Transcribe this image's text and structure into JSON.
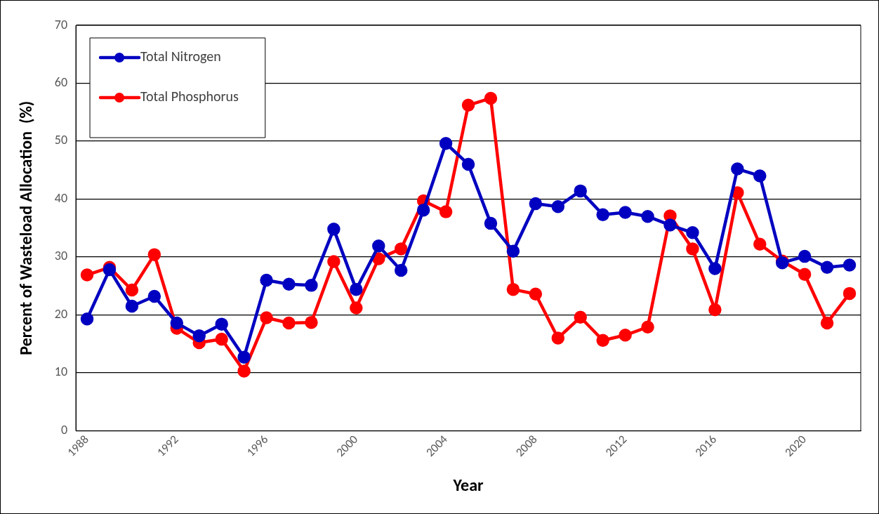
{
  "chart_data": {
    "type": "line",
    "xlabel": "Year",
    "ylabel": "Percent of Wasteload Allocation  (%)",
    "x": [
      1988,
      1989,
      1990,
      1991,
      1992,
      1993,
      1994,
      1995,
      1996,
      1997,
      1998,
      1999,
      2000,
      2001,
      2002,
      2003,
      2004,
      2005,
      2006,
      2007,
      2008,
      2009,
      2010,
      2011,
      2012,
      2013,
      2014,
      2015,
      2016,
      2017,
      2018,
      2019,
      2020,
      2021,
      2022
    ],
    "series": [
      {
        "name": "Total Nitrogen",
        "color": "#0000c0",
        "values": [
          19.3,
          27.8,
          21.5,
          23.2,
          18.6,
          16.4,
          18.4,
          12.7,
          26,
          25.3,
          25.1,
          34.8,
          24.4,
          31.9,
          27.7,
          38.1,
          49.6,
          46,
          35.8,
          31,
          39.2,
          38.7,
          41.4,
          37.3,
          37.7,
          37,
          35.5,
          34.2,
          28,
          45.2,
          44,
          29,
          30.1,
          28.2,
          28.6
        ]
      },
      {
        "name": "Total Phosphorus",
        "color": "#ff0000",
        "values": [
          26.9,
          28.2,
          24.3,
          30.4,
          17.7,
          15.2,
          15.8,
          10.3,
          19.5,
          18.6,
          18.7,
          29.2,
          21.2,
          29.7,
          31.4,
          39.7,
          37.8,
          56.2,
          57.4,
          24.4,
          23.6,
          16,
          19.6,
          15.6,
          16.5,
          17.9,
          37.1,
          31.4,
          20.9,
          41.1,
          32.2,
          29.3,
          27,
          18.6,
          23.7
        ]
      }
    ],
    "xlim": [
      1987.5,
      2022.5
    ],
    "xticks": [
      1988,
      1992,
      1996,
      2000,
      2004,
      2008,
      2012,
      2016,
      2020
    ],
    "ylim": [
      0,
      70
    ],
    "yticks": [
      0,
      10,
      20,
      30,
      40,
      50,
      60,
      70
    ],
    "grid": "y",
    "legend": "top left",
    "marker": "circle",
    "line_style": "solid"
  }
}
